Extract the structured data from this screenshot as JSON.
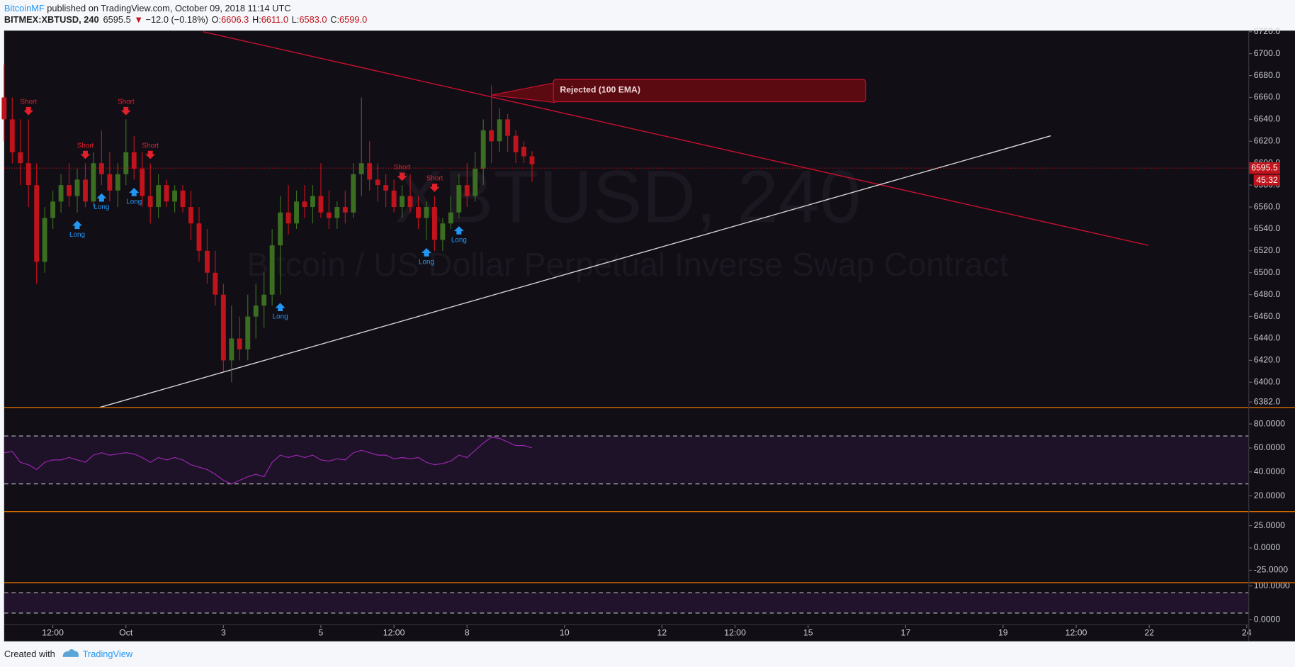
{
  "header": {
    "author": "BitcoinMF",
    "published": "published on TradingView.com, October 09, 2018 11:14 UTC",
    "symbol": "BITMEX:XBTUSD, 240",
    "price": "6595.5",
    "arrow": "▼",
    "change": "−12.0 (−0.18%)",
    "ohlc": [
      {
        "label": "O:",
        "value": "6606.3"
      },
      {
        "label": "H:",
        "value": "6611.0"
      },
      {
        "label": "L:",
        "value": "6583.0"
      },
      {
        "label": "C:",
        "value": "6599.0"
      }
    ]
  },
  "footer": {
    "created": "Created with",
    "brand": "TradingView"
  },
  "chart_data": {
    "type": "candlestick",
    "watermark": "XBTUSD, 240",
    "watermark_subtitle": "Bitcoin / US Dollar Perpetual Inverse Swap Contract",
    "annotation": "Rejected (100 EMA)",
    "last_price": 6595.5,
    "countdown": "45:32",
    "up_color": "#3b6e21",
    "down_color": "#c0131c",
    "xlim": [
      "2018-09-28T12:00",
      "2018-10-24T01:00"
    ],
    "xticks": [
      {
        "value": "2018-09-29T12:00",
        "label": "12:00"
      },
      {
        "value": "2018-10-01T00:00",
        "label": "Oct"
      },
      {
        "value": "2018-10-03T00:00",
        "label": "3"
      },
      {
        "value": "2018-10-05T00:00",
        "label": "5"
      },
      {
        "value": "2018-10-06T12:00",
        "label": "12:00"
      },
      {
        "value": "2018-10-08T00:00",
        "label": "8"
      },
      {
        "value": "2018-10-10T00:00",
        "label": "10"
      },
      {
        "value": "2018-10-12T00:00",
        "label": "12"
      },
      {
        "value": "2018-10-13T12:00",
        "label": "12:00"
      },
      {
        "value": "2018-10-15T00:00",
        "label": "15"
      },
      {
        "value": "2018-10-17T00:00",
        "label": "17"
      },
      {
        "value": "2018-10-19T00:00",
        "label": "19"
      },
      {
        "value": "2018-10-20T12:00",
        "label": "12:00"
      },
      {
        "value": "2018-10-22T00:00",
        "label": "22"
      },
      {
        "value": "2018-10-24T00:00",
        "label": "24"
      }
    ],
    "ylim": [
      6377,
      6721
    ],
    "yticks": [
      {
        "value": 6382,
        "label": "6382.0"
      },
      {
        "value": 6400,
        "label": "6400.0"
      },
      {
        "value": 6420,
        "label": "6420.0"
      },
      {
        "value": 6440,
        "label": "6440.0"
      },
      {
        "value": 6460,
        "label": "6460.0"
      },
      {
        "value": 6480,
        "label": "6480.0"
      },
      {
        "value": 6500,
        "label": "6500.0"
      },
      {
        "value": 6520,
        "label": "6520.0"
      },
      {
        "value": 6540,
        "label": "6540.0"
      },
      {
        "value": 6560,
        "label": "6560.0"
      },
      {
        "value": 6580,
        "label": "6580.0"
      },
      {
        "value": 6600,
        "label": "6600.0"
      },
      {
        "value": 6620,
        "label": "6620.0"
      },
      {
        "value": 6640,
        "label": "6640.0"
      },
      {
        "value": 6660,
        "label": "6660.0"
      },
      {
        "value": 6680,
        "label": "6680.0"
      },
      {
        "value": 6700,
        "label": "6700.0"
      },
      {
        "value": 6720,
        "label": "6720.0"
      }
    ],
    "x": [
      "2018-09-28T12:00",
      "2018-09-28T16:00",
      "2018-09-28T20:00",
      "2018-09-29T00:00",
      "2018-09-29T04:00",
      "2018-09-29T08:00",
      "2018-09-29T12:00",
      "2018-09-29T16:00",
      "2018-09-29T20:00",
      "2018-09-30T00:00",
      "2018-09-30T04:00",
      "2018-09-30T08:00",
      "2018-09-30T12:00",
      "2018-09-30T16:00",
      "2018-09-30T20:00",
      "2018-10-01T00:00",
      "2018-10-01T04:00",
      "2018-10-01T08:00",
      "2018-10-01T12:00",
      "2018-10-01T16:00",
      "2018-10-01T20:00",
      "2018-10-02T00:00",
      "2018-10-02T04:00",
      "2018-10-02T08:00",
      "2018-10-02T12:00",
      "2018-10-02T16:00",
      "2018-10-02T20:00",
      "2018-10-03T00:00",
      "2018-10-03T04:00",
      "2018-10-03T08:00",
      "2018-10-03T12:00",
      "2018-10-03T16:00",
      "2018-10-03T20:00",
      "2018-10-04T00:00",
      "2018-10-04T04:00",
      "2018-10-04T08:00",
      "2018-10-04T12:00",
      "2018-10-04T16:00",
      "2018-10-04T20:00",
      "2018-10-05T00:00",
      "2018-10-05T04:00",
      "2018-10-05T08:00",
      "2018-10-05T12:00",
      "2018-10-05T16:00",
      "2018-10-05T20:00",
      "2018-10-06T00:00",
      "2018-10-06T04:00",
      "2018-10-06T08:00",
      "2018-10-06T12:00",
      "2018-10-06T16:00",
      "2018-10-06T20:00",
      "2018-10-07T00:00",
      "2018-10-07T04:00",
      "2018-10-07T08:00",
      "2018-10-07T12:00",
      "2018-10-07T16:00",
      "2018-10-07T20:00",
      "2018-10-08T00:00",
      "2018-10-08T04:00",
      "2018-10-08T08:00",
      "2018-10-08T12:00",
      "2018-10-08T16:00",
      "2018-10-08T20:00",
      "2018-10-09T00:00",
      "2018-10-09T04:00",
      "2018-10-09T08:00"
    ],
    "open": [
      6660,
      6640,
      6610,
      6600,
      6580,
      6510,
      6550,
      6565,
      6580,
      6570,
      6585,
      6565,
      6600,
      6590,
      6575,
      6590,
      6610,
      6595,
      6570,
      6560,
      6580,
      6565,
      6575,
      6560,
      6545,
      6520,
      6500,
      6480,
      6420,
      6440,
      6430,
      6460,
      6470,
      6480,
      6525,
      6555,
      6545,
      6565,
      6560,
      6570,
      6555,
      6550,
      6560,
      6555,
      6590,
      6600,
      6585,
      6580,
      6575,
      6560,
      6570,
      6560,
      6550,
      6560,
      6530,
      6545,
      6555,
      6580,
      6570,
      6595,
      6630,
      6620,
      6640,
      6625,
      6615,
      6606.3
    ],
    "high": [
      6690,
      6660,
      6640,
      6640,
      6600,
      6560,
      6575,
      6590,
      6600,
      6595,
      6600,
      6610,
      6630,
      6610,
      6600,
      6640,
      6625,
      6610,
      6600,
      6590,
      6585,
      6580,
      6580,
      6575,
      6560,
      6540,
      6520,
      6490,
      6470,
      6460,
      6480,
      6490,
      6500,
      6540,
      6570,
      6580,
      6575,
      6580,
      6580,
      6600,
      6575,
      6565,
      6575,
      6600,
      6660,
      6620,
      6600,
      6590,
      6585,
      6580,
      6590,
      6570,
      6565,
      6570,
      6550,
      6570,
      6590,
      6600,
      6610,
      6640,
      6671,
      6650,
      6645,
      6630,
      6620,
      6611
    ],
    "low": [
      6620,
      6600,
      6580,
      6560,
      6490,
      6500,
      6540,
      6555,
      6560,
      6555,
      6560,
      6560,
      6580,
      6565,
      6560,
      6580,
      6585,
      6560,
      6545,
      6550,
      6560,
      6555,
      6555,
      6530,
      6510,
      6490,
      6470,
      6410,
      6400,
      6420,
      6420,
      6440,
      6450,
      6470,
      6480,
      6535,
      6540,
      6550,
      6545,
      6550,
      6540,
      6540,
      6545,
      6550,
      6570,
      6575,
      6565,
      6560,
      6555,
      6550,
      6555,
      6540,
      6530,
      6520,
      6520,
      6540,
      6550,
      6560,
      6565,
      6580,
      6600,
      6610,
      6610,
      6600,
      6600,
      6583
    ],
    "close": [
      6640,
      6610,
      6600,
      6580,
      6510,
      6550,
      6565,
      6580,
      6570,
      6585,
      6565,
      6600,
      6590,
      6575,
      6590,
      6610,
      6595,
      6570,
      6560,
      6580,
      6565,
      6575,
      6560,
      6545,
      6520,
      6500,
      6480,
      6420,
      6440,
      6430,
      6460,
      6470,
      6480,
      6525,
      6555,
      6545,
      6565,
      6560,
      6570,
      6555,
      6550,
      6560,
      6555,
      6590,
      6600,
      6585,
      6580,
      6575,
      6560,
      6570,
      6560,
      6550,
      6560,
      6530,
      6545,
      6555,
      6580,
      6570,
      6595,
      6630,
      6620,
      6640,
      6625,
      6610,
      6606.3,
      6599
    ],
    "signals": [
      {
        "label": "Short",
        "x": "2018-09-29T00:00"
      },
      {
        "label": "Short",
        "x": "2018-09-30T04:00"
      },
      {
        "label": "Short",
        "x": "2018-10-01T00:00"
      },
      {
        "label": "Short",
        "x": "2018-10-01T12:00"
      },
      {
        "label": "Short",
        "x": "2018-10-06T16:00"
      },
      {
        "label": "Short",
        "x": "2018-10-07T08:00"
      },
      {
        "label": "Long",
        "x": "2018-09-30T00:00"
      },
      {
        "label": "Long",
        "x": "2018-09-30T12:00"
      },
      {
        "label": "Long",
        "x": "2018-10-01T04:00"
      },
      {
        "label": "Long",
        "x": "2018-10-04T04:00"
      },
      {
        "label": "Long",
        "x": "2018-10-07T04:00"
      },
      {
        "label": "Long",
        "x": "2018-10-07T20:00"
      }
    ],
    "drawings": [
      {
        "color": "#c8102e",
        "points": [
          [
            "2018-10-02T14:00",
            6720
          ],
          [
            "2018-10-21T23:30",
            6525
          ]
        ]
      },
      {
        "color": "#d8d8d8",
        "points": [
          [
            "2018-09-30T11:00",
            6377
          ],
          [
            "2018-10-19T23:30",
            6625
          ]
        ]
      }
    ],
    "rsi": {
      "color": "#9c27b0",
      "ylim": [
        6.9,
        93.1
      ],
      "bands": [
        30,
        70
      ],
      "yticks": [
        {
          "value": 20,
          "label": "20.0000"
        },
        {
          "value": 40,
          "label": "40.0000"
        },
        {
          "value": 60,
          "label": "60.0000"
        },
        {
          "value": 80,
          "label": "80.0000"
        }
      ],
      "values": [
        56,
        57,
        48,
        46,
        42,
        48,
        50,
        50,
        52,
        50,
        48,
        54,
        56,
        54,
        55,
        56,
        55,
        52,
        48,
        52,
        50,
        52,
        50,
        46,
        44,
        42,
        38,
        33,
        30,
        33,
        36,
        38,
        36,
        48,
        54,
        52,
        54,
        52,
        54,
        50,
        49,
        51,
        50,
        56,
        58,
        56,
        54,
        54,
        51,
        52,
        51,
        52,
        48,
        46,
        47,
        49,
        54,
        52,
        58,
        64,
        69,
        68,
        65,
        62,
        62,
        60
      ]
    },
    "macd": {
      "ylim": [
        -38.9,
        39.8
      ],
      "yticks": [
        {
          "value": -25,
          "label": "-25.0000"
        },
        {
          "value": 0,
          "label": "0.0000"
        },
        {
          "value": 25,
          "label": "25.0000"
        }
      ]
    },
    "stoch": {
      "ylim": [
        -14.6,
        107.3
      ],
      "bands": [
        20,
        80
      ],
      "yticks": [
        {
          "value": 0,
          "label": "0.0000"
        },
        {
          "value": 100,
          "label": "100.0000"
        }
      ]
    }
  }
}
